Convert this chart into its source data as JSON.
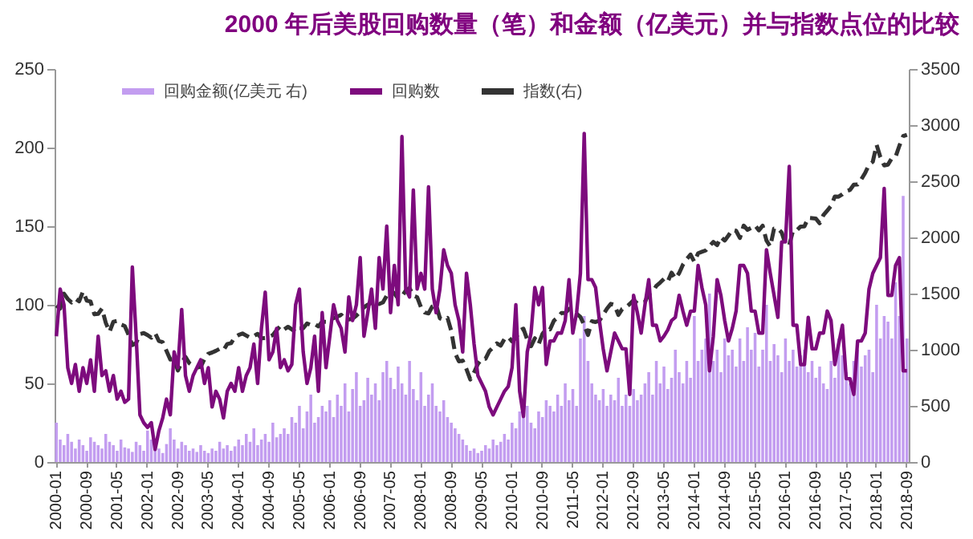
{
  "chart_data": {
    "type": "line",
    "title": "2000 年后美股回购数量（笔）和金额（亿美元）并与指数点位的比较",
    "categories": [
      "2000-01",
      null,
      null,
      null,
      null,
      null,
      null,
      null,
      "2000-09",
      null,
      null,
      null,
      null,
      null,
      null,
      null,
      "2001-05",
      null,
      null,
      null,
      null,
      null,
      null,
      null,
      "2002-01",
      null,
      null,
      null,
      null,
      null,
      null,
      null,
      "2002-09",
      null,
      null,
      null,
      null,
      null,
      null,
      null,
      "2003-05",
      null,
      null,
      null,
      null,
      null,
      null,
      null,
      "2004-01",
      null,
      null,
      null,
      null,
      null,
      null,
      null,
      "2004-09",
      null,
      null,
      null,
      null,
      null,
      null,
      null,
      "2005-05",
      null,
      null,
      null,
      null,
      null,
      null,
      null,
      "2006-01",
      null,
      null,
      null,
      null,
      null,
      null,
      null,
      "2006-09",
      null,
      null,
      null,
      null,
      null,
      null,
      null,
      "2007-05",
      null,
      null,
      null,
      null,
      null,
      null,
      null,
      "2008-01",
      null,
      null,
      null,
      null,
      null,
      null,
      null,
      "2008-09",
      null,
      null,
      null,
      null,
      null,
      null,
      null,
      "2009-05",
      null,
      null,
      null,
      null,
      null,
      null,
      null,
      "2010-01",
      null,
      null,
      null,
      null,
      null,
      null,
      null,
      "2010-09",
      null,
      null,
      null,
      null,
      null,
      null,
      null,
      "2011-05",
      null,
      null,
      null,
      null,
      null,
      null,
      null,
      "2012-01",
      null,
      null,
      null,
      null,
      null,
      null,
      null,
      "2012-09",
      null,
      null,
      null,
      null,
      null,
      null,
      null,
      "2013-05",
      null,
      null,
      null,
      null,
      null,
      null,
      null,
      "2014-01",
      null,
      null,
      null,
      null,
      null,
      null,
      null,
      "2014-09",
      null,
      null,
      null,
      null,
      null,
      null,
      null,
      "2015-05",
      null,
      null,
      null,
      null,
      null,
      null,
      null,
      "2016-01",
      null,
      null,
      null,
      null,
      null,
      null,
      null,
      "2016-09",
      null,
      null,
      null,
      null,
      null,
      null,
      null,
      "2017-05",
      null,
      null,
      null,
      null,
      null,
      null,
      null,
      "2018-01",
      null,
      null,
      null,
      null,
      null,
      null,
      null,
      "2018-09"
    ],
    "series": [
      {
        "name": "回购金额(亿美元 右)",
        "type": "bar",
        "axis": "y2",
        "color": "#c39df0",
        "values": [
          350,
          200,
          150,
          250,
          180,
          120,
          200,
          150,
          100,
          220,
          180,
          150,
          120,
          250,
          180,
          150,
          100,
          200,
          130,
          120,
          90,
          180,
          150,
          100,
          280,
          200,
          150,
          120,
          80,
          160,
          300,
          200,
          120,
          180,
          150,
          100,
          120,
          90,
          150,
          100,
          80,
          120,
          100,
          180,
          120,
          150,
          100,
          140,
          200,
          150,
          250,
          180,
          300,
          150,
          200,
          250,
          180,
          350,
          220,
          250,
          300,
          250,
          400,
          350,
          500,
          300,
          450,
          600,
          350,
          400,
          500,
          450,
          550,
          400,
          600,
          500,
          700,
          450,
          650,
          800,
          500,
          550,
          750,
          600,
          700,
          550,
          800,
          900,
          750,
          650,
          850,
          700,
          600,
          900,
          650,
          550,
          800,
          500,
          600,
          700,
          500,
          450,
          550,
          400,
          350,
          300,
          250,
          200,
          150,
          100,
          120,
          80,
          100,
          150,
          120,
          200,
          150,
          180,
          250,
          200,
          350,
          300,
          450,
          400,
          500,
          350,
          300,
          450,
          400,
          550,
          500,
          450,
          600,
          500,
          700,
          550,
          650,
          500,
          1100,
          1300,
          900,
          700,
          600,
          550,
          650,
          500,
          600,
          550,
          750,
          500,
          600,
          500,
          650,
          550,
          600,
          700,
          800,
          600,
          900,
          700,
          850,
          650,
          750,
          1000,
          800,
          700,
          900,
          750,
          1300,
          900,
          1000,
          1100,
          1500,
          900,
          1000,
          800,
          1100,
          950,
          1000,
          850,
          1100,
          900,
          1200,
          1000,
          1150,
          850,
          1000,
          1400,
          900,
          1050,
          950,
          800,
          1100,
          900,
          1000,
          850,
          950,
          1000,
          800,
          900,
          750,
          850,
          700,
          650,
          900,
          750,
          1100,
          950,
          800,
          700,
          900,
          1000,
          850,
          950,
          1000,
          800,
          1400,
          1100,
          1300,
          1250,
          1100,
          1600,
          1300,
          2370,
          1100
        ]
      },
      {
        "name": "回购数",
        "type": "line",
        "color": "#7d0b7d",
        "values": [
          80,
          110,
          100,
          60,
          50,
          62,
          45,
          60,
          50,
          65,
          45,
          80,
          55,
          58,
          45,
          55,
          40,
          45,
          38,
          40,
          124,
          80,
          30,
          25,
          22,
          25,
          8,
          20,
          28,
          40,
          30,
          70,
          60,
          97,
          55,
          45,
          55,
          60,
          65,
          50,
          60,
          35,
          45,
          40,
          28,
          45,
          50,
          45,
          60,
          45,
          55,
          60,
          75,
          50,
          85,
          108,
          65,
          70,
          85,
          60,
          65,
          58,
          62,
          100,
          110,
          70,
          50,
          60,
          80,
          45,
          95,
          60,
          80,
          100,
          90,
          85,
          70,
          105,
          90,
          100,
          130,
          80,
          95,
          110,
          85,
          130,
          110,
          150,
          95,
          125,
          100,
          207,
          110,
          105,
          173,
          110,
          120,
          110,
          175,
          110,
          95,
          110,
          135,
          125,
          120,
          100,
          90,
          70,
          120,
          100,
          75,
          55,
          50,
          45,
          35,
          30,
          35,
          40,
          45,
          48,
          60,
          100,
          45,
          29,
          70,
          82,
          111,
          100,
          111,
          62,
          77,
          77,
          82,
          82,
          90,
          116,
          82,
          95,
          120,
          209,
          116,
          116,
          111,
          90,
          72,
          58,
          70,
          82,
          77,
          72,
          72,
          43,
          106,
          95,
          82,
          100,
          116,
          87,
          87,
          77,
          80,
          84,
          90,
          92,
          106,
          96,
          87,
          96,
          96,
          125,
          111,
          100,
          58,
          80,
          116,
          106,
          90,
          77,
          85,
          96,
          125,
          125,
          120,
          96,
          96,
          82,
          82,
          135,
          120,
          106,
          92,
          140,
          140,
          188,
          87,
          87,
          62,
          62,
          92,
          72,
          72,
          82,
          82,
          96,
          90,
          62,
          75,
          87,
          53,
          53,
          43,
          77,
          77,
          82,
          110,
          120,
          125,
          130,
          174,
          106,
          106,
          125,
          130,
          58,
          58
        ]
      },
      {
        "name": "指数(右)",
        "type": "line",
        "axis": "y2",
        "color": "#333333",
        "line_style": "dashed",
        "values": [
          1394,
          1366,
          1499,
          1452,
          1421,
          1455,
          1431,
          1518,
          1437,
          1429,
          1315,
          1320,
          1366,
          1240,
          1160,
          1249,
          1256,
          1224,
          1211,
          1134,
          1041,
          1060,
          1139,
          1148,
          1130,
          1107,
          1147,
          1077,
          1067,
          989,
          912,
          916,
          815,
          886,
          936,
          880,
          856,
          841,
          848,
          917,
          964,
          975,
          990,
          1008,
          996,
          1051,
          1058,
          1112,
          1131,
          1145,
          1126,
          1107,
          1121,
          1141,
          1102,
          1104,
          1115,
          1130,
          1174,
          1212,
          1181,
          1204,
          1181,
          1157,
          1192,
          1191,
          1234,
          1220,
          1229,
          1207,
          1249,
          1248,
          1280,
          1281,
          1295,
          1311,
          1270,
          1270,
          1277,
          1304,
          1336,
          1378,
          1401,
          1418,
          1438,
          1407,
          1421,
          1482,
          1531,
          1503,
          1455,
          1474,
          1527,
          1549,
          1481,
          1468,
          1379,
          1331,
          1323,
          1386,
          1400,
          1280,
          1267,
          1283,
          1165,
          969,
          896,
          903,
          826,
          735,
          798,
          873,
          919,
          919,
          987,
          1021,
          1057,
          1036,
          1096,
          1115,
          1074,
          1104,
          1169,
          1187,
          1089,
          1031,
          1102,
          1049,
          1141,
          1183,
          1181,
          1258,
          1286,
          1327,
          1326,
          1364,
          1345,
          1321,
          1292,
          1219,
          1131,
          1253,
          1247,
          1258,
          1312,
          1366,
          1408,
          1398,
          1310,
          1362,
          1379,
          1407,
          1441,
          1412,
          1416,
          1426,
          1498,
          1515,
          1569,
          1598,
          1631,
          1606,
          1686,
          1633,
          1682,
          1757,
          1806,
          1848,
          1783,
          1859,
          1872,
          1884,
          1924,
          1960,
          1931,
          2003,
          1972,
          2018,
          2068,
          2059,
          1995,
          2105,
          2068,
          2086,
          2107,
          2063,
          2104,
          1972,
          1920,
          2079,
          2080,
          2044,
          1940,
          1932,
          2060,
          2065,
          2097,
          2099,
          2174,
          2171,
          2168,
          2126,
          2199,
          2239,
          2279,
          2364,
          2363,
          2384,
          2412,
          2423,
          2470,
          2472,
          2519,
          2575,
          2648,
          2674,
          2824,
          2714,
          2641,
          2648,
          2705,
          2718,
          2816,
          2902,
          2914
        ]
      }
    ],
    "ylim": [
      0,
      250
    ],
    "yticks": [
      0,
      50,
      100,
      150,
      200,
      250
    ],
    "y2lim": [
      0,
      3500
    ],
    "y2ticks": [
      0,
      500,
      1000,
      1500,
      2000,
      2500,
      3000,
      3500
    ],
    "grid": false,
    "legend": "top"
  }
}
